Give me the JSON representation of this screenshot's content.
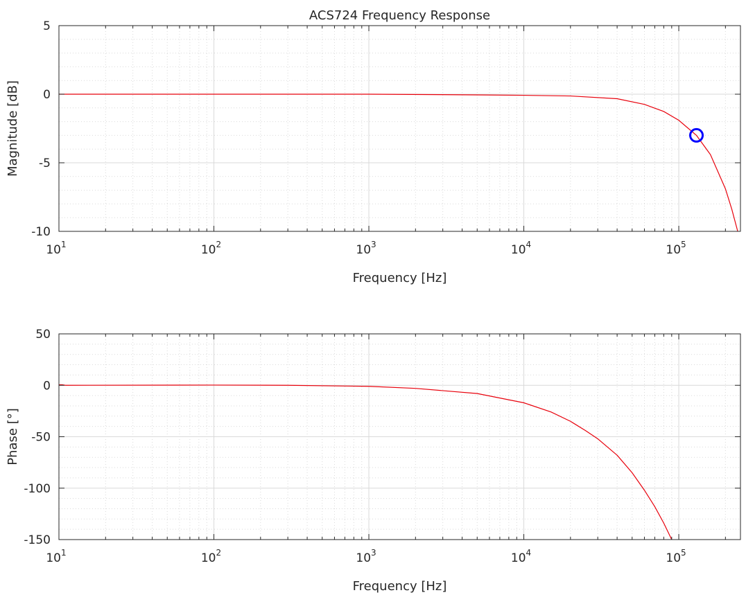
{
  "chart_data": [
    {
      "type": "line",
      "title": "ACS724 Frequency Response",
      "xlabel": "Frequency [Hz]",
      "ylabel": "Magnitude [dB]",
      "xscale": "log",
      "xlim": [
        10,
        250000
      ],
      "ylim": [
        -10,
        5
      ],
      "grid": true,
      "x_ticks": [
        10,
        100,
        1000,
        10000,
        100000
      ],
      "x_tick_labels": [
        {
          "base": "10",
          "exp": "1"
        },
        {
          "base": "10",
          "exp": "2"
        },
        {
          "base": "10",
          "exp": "3"
        },
        {
          "base": "10",
          "exp": "4"
        },
        {
          "base": "10",
          "exp": "5"
        }
      ],
      "y_ticks": [
        5,
        0,
        -5,
        -10
      ],
      "y_tick_labels": [
        "5",
        "0",
        "-5",
        "-10"
      ],
      "series": [
        {
          "color": "#e8000b",
          "x": [
            10,
            100,
            1000,
            5000,
            10000,
            20000,
            40000,
            60000,
            80000,
            100000,
            130000,
            160000,
            200000,
            220000,
            240000
          ],
          "y": [
            0,
            0,
            0,
            -0.05,
            -0.08,
            -0.13,
            -0.33,
            -0.74,
            -1.26,
            -1.9,
            -3.0,
            -4.4,
            -6.9,
            -8.4,
            -10.0
          ]
        }
      ],
      "markers": [
        {
          "x": 130000,
          "y": -3.0,
          "shape": "circle",
          "color": "#0000ff"
        }
      ]
    },
    {
      "type": "line",
      "xlabel": "Frequency [Hz]",
      "ylabel": "Phase [°]",
      "xscale": "log",
      "xlim": [
        10,
        250000
      ],
      "ylim": [
        -150,
        50
      ],
      "grid": true,
      "x_ticks": [
        10,
        100,
        1000,
        10000,
        100000
      ],
      "x_tick_labels": [
        {
          "base": "10",
          "exp": "1"
        },
        {
          "base": "10",
          "exp": "2"
        },
        {
          "base": "10",
          "exp": "3"
        },
        {
          "base": "10",
          "exp": "4"
        },
        {
          "base": "10",
          "exp": "5"
        }
      ],
      "y_ticks": [
        50,
        0,
        -50,
        -100,
        -150
      ],
      "y_tick_labels": [
        "50",
        "0",
        "-50",
        "-100",
        "-150"
      ],
      "series": [
        {
          "color": "#e8000b",
          "x": [
            10,
            10.5,
            11,
            100,
            300,
            1000,
            2000,
            5000,
            10000,
            15000,
            20000,
            21000,
            25000,
            30000,
            40000,
            50000,
            60000,
            70000,
            80000,
            90000
          ],
          "y": [
            0.5,
            0.5,
            0,
            0.2,
            0,
            -1,
            -3,
            -8,
            -17,
            -26,
            -35,
            -37,
            -44,
            -52,
            -68,
            -85,
            -102,
            -118,
            -134,
            -150
          ]
        }
      ],
      "markers": []
    }
  ]
}
